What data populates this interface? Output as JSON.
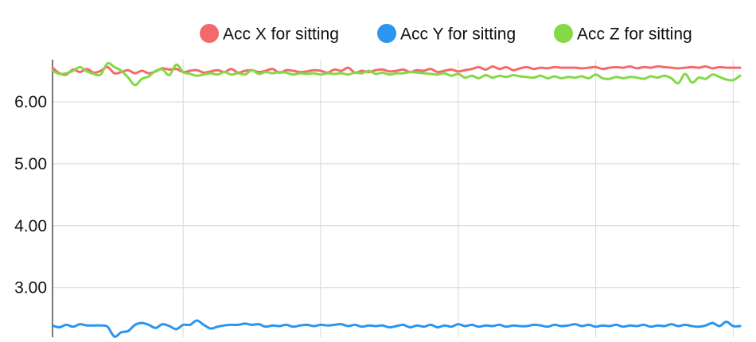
{
  "chart_data": {
    "type": "line",
    "title": "",
    "xlabel": "",
    "ylabel": "",
    "ylim": [
      2.2,
      6.68
    ],
    "y_ticks": [
      "3.00",
      "4.00",
      "5.00",
      "6.00"
    ],
    "y_tick_values": [
      3,
      4,
      5,
      6
    ],
    "x_range": [
      0,
      100
    ],
    "x_grid_values": [
      0,
      19,
      39,
      59,
      79,
      99
    ],
    "grid": true,
    "legend_position": "top-right",
    "series": [
      {
        "name": "Acc X for sitting",
        "color": "#f46a6a",
        "values": [
          6.55,
          6.46,
          6.44,
          6.52,
          6.48,
          6.53,
          6.47,
          6.5,
          6.56,
          6.46,
          6.48,
          6.51,
          6.46,
          6.5,
          6.46,
          6.49,
          6.54,
          6.52,
          6.53,
          6.48,
          6.5,
          6.51,
          6.47,
          6.49,
          6.51,
          6.48,
          6.53,
          6.47,
          6.5,
          6.51,
          6.48,
          6.5,
          6.53,
          6.47,
          6.51,
          6.5,
          6.48,
          6.49,
          6.51,
          6.5,
          6.47,
          6.52,
          6.5,
          6.55,
          6.47,
          6.5,
          6.48,
          6.51,
          6.52,
          6.49,
          6.5,
          6.52,
          6.48,
          6.51,
          6.5,
          6.53,
          6.48,
          6.5,
          6.52,
          6.49,
          6.51,
          6.53,
          6.56,
          6.52,
          6.57,
          6.53,
          6.56,
          6.51,
          6.54,
          6.56,
          6.53,
          6.55,
          6.54,
          6.56,
          6.55,
          6.55,
          6.55,
          6.54,
          6.55,
          6.56,
          6.53,
          6.55,
          6.56,
          6.55,
          6.57,
          6.54,
          6.56,
          6.55,
          6.57,
          6.56,
          6.55,
          6.54,
          6.55,
          6.56,
          6.55,
          6.57,
          6.54,
          6.56,
          6.55,
          6.55,
          6.55
        ]
      },
      {
        "name": "Acc Y for sitting",
        "color": "#2b95f0",
        "values": [
          2.39,
          2.36,
          2.4,
          2.37,
          2.41,
          2.39,
          2.39,
          2.39,
          2.37,
          2.21,
          2.28,
          2.3,
          2.4,
          2.43,
          2.4,
          2.35,
          2.41,
          2.38,
          2.33,
          2.4,
          2.4,
          2.47,
          2.4,
          2.34,
          2.37,
          2.39,
          2.4,
          2.4,
          2.42,
          2.4,
          2.41,
          2.37,
          2.39,
          2.38,
          2.4,
          2.37,
          2.39,
          2.4,
          2.38,
          2.4,
          2.39,
          2.4,
          2.41,
          2.38,
          2.4,
          2.37,
          2.39,
          2.38,
          2.39,
          2.36,
          2.38,
          2.4,
          2.36,
          2.39,
          2.37,
          2.4,
          2.36,
          2.39,
          2.37,
          2.41,
          2.38,
          2.4,
          2.37,
          2.39,
          2.38,
          2.4,
          2.37,
          2.39,
          2.38,
          2.38,
          2.4,
          2.39,
          2.37,
          2.4,
          2.38,
          2.39,
          2.41,
          2.38,
          2.4,
          2.37,
          2.39,
          2.38,
          2.4,
          2.37,
          2.39,
          2.38,
          2.4,
          2.37,
          2.39,
          2.38,
          2.41,
          2.38,
          2.4,
          2.38,
          2.37,
          2.39,
          2.43,
          2.38,
          2.45,
          2.38,
          2.38
        ]
      },
      {
        "name": "Acc Z for sitting",
        "color": "#83d946",
        "values": [
          6.5,
          6.45,
          6.46,
          6.5,
          6.56,
          6.49,
          6.45,
          6.44,
          6.62,
          6.56,
          6.5,
          6.39,
          6.27,
          6.37,
          6.41,
          6.5,
          6.52,
          6.43,
          6.6,
          6.48,
          6.45,
          6.42,
          6.44,
          6.46,
          6.44,
          6.48,
          6.44,
          6.46,
          6.44,
          6.51,
          6.45,
          6.48,
          6.46,
          6.48,
          6.47,
          6.44,
          6.46,
          6.45,
          6.46,
          6.44,
          6.46,
          6.45,
          6.46,
          6.44,
          6.47,
          6.46,
          6.5,
          6.45,
          6.47,
          6.44,
          6.46,
          6.46,
          6.48,
          6.47,
          6.46,
          6.45,
          6.44,
          6.46,
          6.42,
          6.45,
          6.39,
          6.42,
          6.38,
          6.43,
          6.39,
          6.42,
          6.4,
          6.43,
          6.41,
          6.4,
          6.39,
          6.42,
          6.38,
          6.41,
          6.38,
          6.4,
          6.39,
          6.41,
          6.38,
          6.44,
          6.38,
          6.37,
          6.4,
          6.38,
          6.4,
          6.39,
          6.37,
          6.41,
          6.39,
          6.42,
          6.38,
          6.3,
          6.45,
          6.31,
          6.39,
          6.37,
          6.44,
          6.4,
          6.36,
          6.35,
          6.42
        ]
      }
    ]
  }
}
